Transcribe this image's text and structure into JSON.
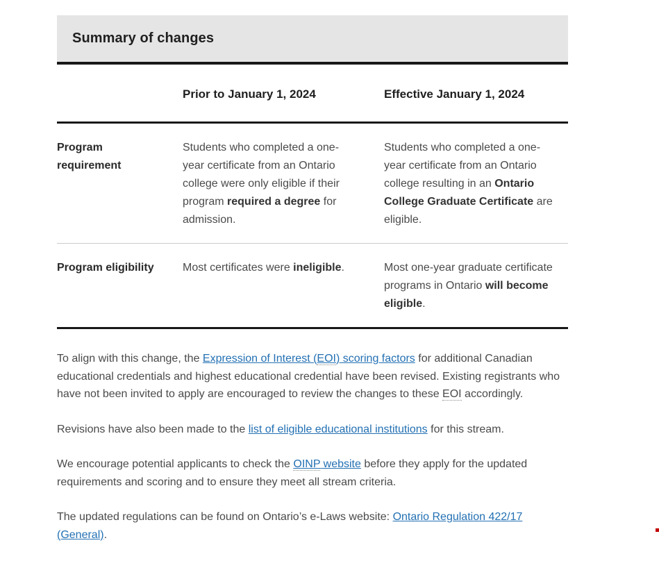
{
  "theme": {
    "link_color": "#2370b3",
    "header_background": "#e5e5e5",
    "rule_color": "#181818",
    "row_divider_color": "#cccccc",
    "body_text_color": "#4a4a4a"
  },
  "summary": {
    "title": "Summary of changes"
  },
  "table": {
    "col_headers": {
      "corner": "",
      "prior": "Prior to January 1, 2024",
      "effective": "Effective January 1, 2024"
    },
    "rows": [
      {
        "label": "Program requirement",
        "prior": [
          {
            "t": "Students who completed a one-year certificate from an Ontario college were only eligible if their program "
          },
          {
            "t": "required a degree",
            "s": "bold"
          },
          {
            "t": " for admission."
          }
        ],
        "effective": [
          {
            "t": "Students who completed a one-year certificate from an Ontario college resulting in an "
          },
          {
            "t": "Ontario College Graduate Certificate",
            "s": "bold"
          },
          {
            "t": " are eligible."
          }
        ]
      },
      {
        "label": "Program eligibility",
        "prior": [
          {
            "t": "Most certificates were "
          },
          {
            "t": "ineligible",
            "s": "bold"
          },
          {
            "t": "."
          }
        ],
        "effective": [
          {
            "t": "Most one-year graduate certificate programs in Ontario "
          },
          {
            "t": "will become eligible",
            "s": "bold"
          },
          {
            "t": "."
          }
        ]
      }
    ]
  },
  "paragraphs": [
    {
      "segments": [
        {
          "t": "To align with this change, the "
        },
        {
          "t": "Expression of Interest (",
          "s": "link"
        },
        {
          "t": "EOI",
          "s": "link-abbr"
        },
        {
          "t": ") scoring factors",
          "s": "link"
        },
        {
          "t": " for additional Canadian educational credentials and highest educational credential have been revised. Existing registrants who have not been invited to apply are encouraged to review the changes to these "
        },
        {
          "t": "EOI",
          "s": "abbr"
        },
        {
          "t": " accordingly."
        }
      ]
    },
    {
      "segments": [
        {
          "t": "Revisions have also been made to the "
        },
        {
          "t": "list of eligible educational institutions",
          "s": "link"
        },
        {
          "t": " for this stream."
        }
      ]
    },
    {
      "segments": [
        {
          "t": "We encourage potential applicants to check the "
        },
        {
          "t": "OINP",
          "s": "link-abbr"
        },
        {
          "t": " website",
          "s": "link"
        },
        {
          "t": " before they apply for the updated requirements and scoring and to ensure they meet all stream criteria."
        }
      ]
    },
    {
      "segments": [
        {
          "t": "The updated regulations can be found on Ontario’s e-Laws website: "
        },
        {
          "t": "Ontario Regulation 422/17 (General)",
          "s": "link"
        },
        {
          "t": "."
        }
      ]
    }
  ]
}
